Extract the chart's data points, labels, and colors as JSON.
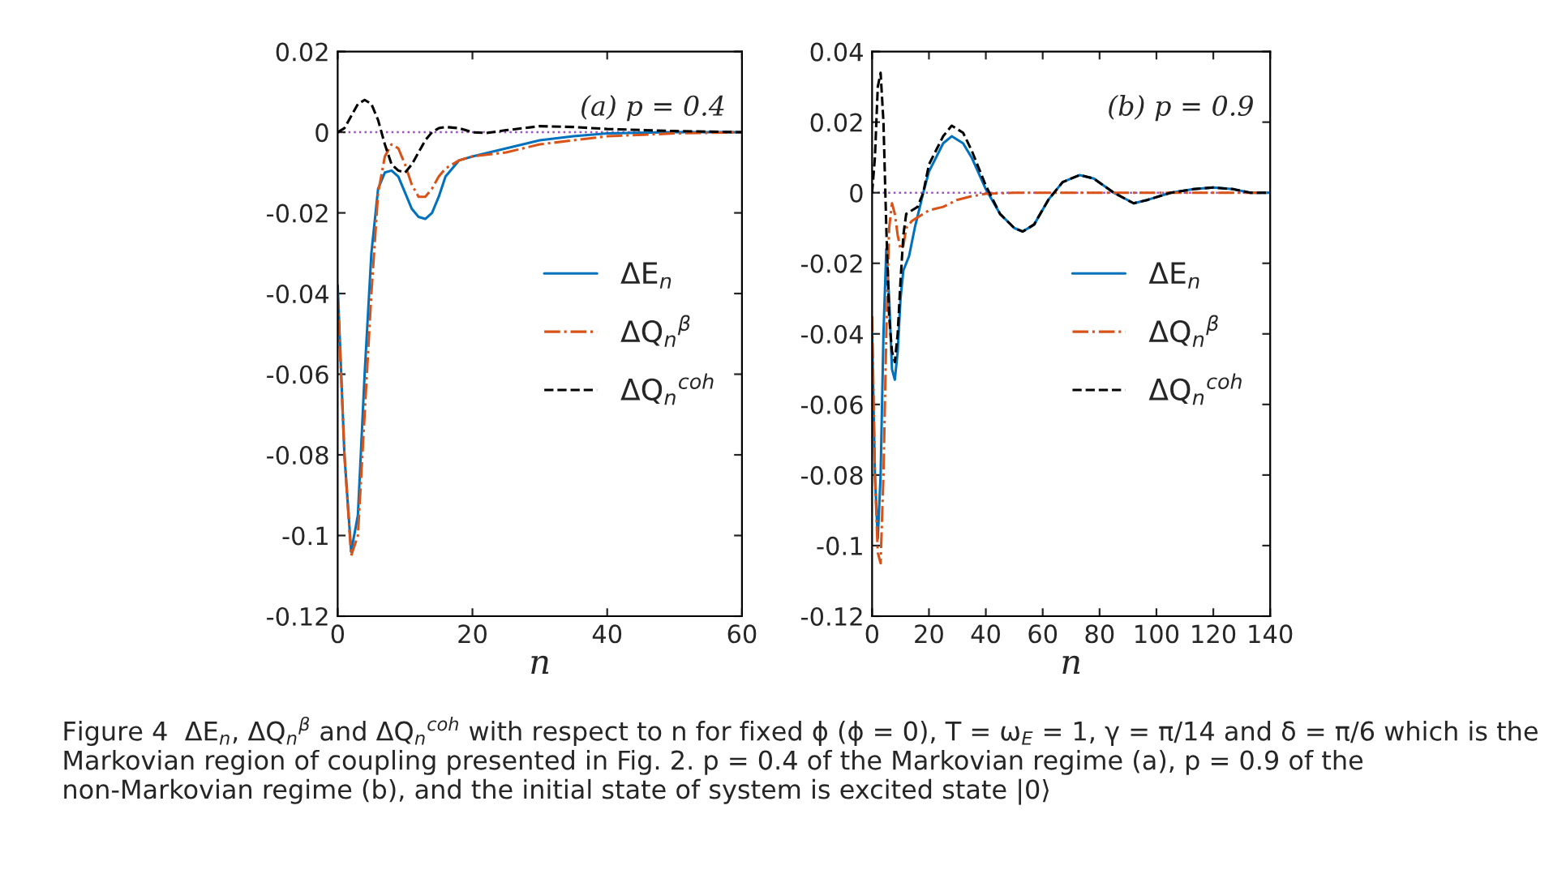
{
  "chart_data": [
    {
      "type": "line",
      "xlabel": "n",
      "xlim": [
        0,
        60
      ],
      "xticks": [
        0,
        20,
        40,
        60
      ],
      "ylim": [
        -0.12,
        0.02
      ],
      "yticks": [
        -0.12,
        -0.1,
        -0.08,
        -0.06,
        -0.04,
        -0.02,
        0,
        0.02
      ],
      "grid": false,
      "legend": "right",
      "marker": "none",
      "ref_lines": [
        {
          "axis": "y",
          "value": 0,
          "color": "#a050c0",
          "line_style": "dotted"
        }
      ],
      "annotations": [
        "(a) p = 0.4",
        "Figure 4  ΔE$_{n}$, ΔQ$_{n}$$^{β}$ and ΔQ$_{n}$$^{coh}$ with respect to n for fixed ϕ (ϕ = 0), T = ω$_{E}$ = 1, γ = π/14 and δ = π/6 which is the Markovian region of coupling presented in Fig. 2. p = 0.4 of the Markovian regime (a), p = 0.9 of the non-Markovian regime (b), and the initial state of system is excited state |0⟩"
      ],
      "series": [
        {
          "name": "ΔE$_{n}$",
          "color": "#0072bd",
          "line_style": "solid",
          "x": [
            0,
            1,
            2,
            3,
            4,
            5,
            6,
            7,
            8,
            9,
            10,
            11,
            12,
            13,
            14,
            15,
            16,
            18,
            20,
            25,
            30,
            35,
            40,
            50,
            60
          ],
          "values": [
            -0.038,
            -0.08,
            -0.104,
            -0.095,
            -0.06,
            -0.03,
            -0.014,
            -0.01,
            -0.0095,
            -0.011,
            -0.015,
            -0.019,
            -0.021,
            -0.0215,
            -0.02,
            -0.016,
            -0.011,
            -0.007,
            -0.006,
            -0.004,
            -0.002,
            -0.001,
            -0.0003,
            0,
            0
          ]
        },
        {
          "name": "ΔQ$_{n}$$^{β}$",
          "color": "#d95319",
          "line_style": "dashdot",
          "x": [
            0,
            1,
            2,
            3,
            4,
            5,
            6,
            7,
            8,
            9,
            10,
            11,
            12,
            13,
            14,
            15,
            16,
            18,
            20,
            25,
            30,
            40,
            50,
            60
          ],
          "values": [
            -0.04,
            -0.08,
            -0.105,
            -0.1,
            -0.07,
            -0.04,
            -0.015,
            -0.006,
            -0.003,
            -0.004,
            -0.008,
            -0.013,
            -0.016,
            -0.016,
            -0.014,
            -0.011,
            -0.009,
            -0.007,
            -0.006,
            -0.005,
            -0.003,
            -0.001,
            -0.0003,
            0
          ]
        },
        {
          "name": "ΔQ$_{n}$$^{coh}$",
          "color": "#000000",
          "line_style": "dashed",
          "x": [
            0,
            1,
            2,
            3,
            4,
            5,
            6,
            7,
            8,
            9,
            10,
            11,
            12,
            13,
            14,
            15,
            16,
            18,
            20,
            22,
            25,
            30,
            35,
            40,
            50,
            60
          ],
          "values": [
            0,
            0.001,
            0.004,
            0.007,
            0.008,
            0.007,
            0.003,
            -0.003,
            -0.008,
            -0.0095,
            -0.01,
            -0.008,
            -0.005,
            -0.002,
            0,
            0.001,
            0.0013,
            0.001,
            0,
            -0.0002,
            0.0005,
            0.0015,
            0.0013,
            0.0008,
            0.0003,
            0
          ]
        }
      ]
    },
    {
      "type": "line",
      "xlabel": "n",
      "xlim": [
        0,
        140
      ],
      "xticks": [
        0,
        20,
        40,
        60,
        80,
        100,
        120,
        140
      ],
      "ylim": [
        -0.12,
        0.04
      ],
      "yticks": [
        -0.12,
        -0.1,
        -0.08,
        -0.06,
        -0.04,
        -0.02,
        0,
        0.02,
        0.04
      ],
      "grid": false,
      "legend": "right",
      "marker": "none",
      "ref_lines": [
        {
          "axis": "y",
          "value": 0,
          "color": "#a050c0",
          "line_style": "dotted"
        }
      ],
      "annotations": [
        "(b) p = 0.9"
      ],
      "series": [
        {
          "name": "ΔE$_{n}$",
          "color": "#0072bd",
          "line_style": "solid",
          "x": [
            0,
            1,
            2,
            3,
            4,
            5,
            6,
            7,
            8,
            9,
            10,
            11,
            13,
            15,
            18,
            20,
            25,
            28,
            32,
            35,
            40,
            45,
            50,
            53,
            57,
            62,
            67,
            73,
            78,
            85,
            92,
            97,
            105,
            113,
            120,
            127,
            133,
            140
          ],
          "values": [
            -0.04,
            -0.08,
            -0.098,
            -0.08,
            -0.04,
            -0.016,
            -0.03,
            -0.05,
            -0.053,
            -0.045,
            -0.03,
            -0.022,
            -0.018,
            -0.01,
            0,
            0.006,
            0.014,
            0.016,
            0.014,
            0.01,
            0.001,
            -0.006,
            -0.01,
            -0.011,
            -0.009,
            -0.002,
            0.003,
            0.005,
            0.004,
            0,
            -0.003,
            -0.002,
            0,
            0.001,
            0.0015,
            0.001,
            0,
            0
          ]
        },
        {
          "name": "ΔQ$_{n}$$^{β}$",
          "color": "#d95319",
          "line_style": "dashdot",
          "x": [
            0,
            1,
            2,
            3,
            4,
            5,
            6,
            7,
            8,
            9,
            10,
            11,
            12,
            14,
            16,
            20,
            25,
            30,
            35,
            40,
            50,
            140
          ],
          "values": [
            -0.035,
            -0.08,
            -0.102,
            -0.105,
            -0.08,
            -0.04,
            -0.01,
            -0.003,
            -0.006,
            -0.012,
            -0.016,
            -0.015,
            -0.01,
            -0.008,
            -0.007,
            -0.005,
            -0.004,
            -0.002,
            -0.001,
            -0.0003,
            0,
            0
          ]
        },
        {
          "name": "ΔQ$_{n}$$^{coh}$",
          "color": "#000000",
          "line_style": "dashed",
          "x": [
            0,
            1,
            2,
            3,
            4,
            5,
            6,
            7,
            8,
            9,
            10,
            11,
            12,
            14,
            16,
            18,
            20,
            25,
            28,
            32,
            35,
            40,
            45,
            50,
            53,
            57,
            62,
            67,
            73,
            78,
            85,
            92,
            97,
            105,
            113,
            120,
            127,
            133,
            140
          ],
          "values": [
            0,
            0.01,
            0.03,
            0.034,
            0.02,
            -0.01,
            -0.035,
            -0.045,
            -0.048,
            -0.04,
            -0.025,
            -0.012,
            -0.006,
            -0.005,
            -0.004,
            0,
            0.008,
            0.016,
            0.019,
            0.017,
            0.012,
            0.002,
            -0.006,
            -0.01,
            -0.011,
            -0.009,
            -0.002,
            0.003,
            0.005,
            0.004,
            0,
            -0.003,
            -0.002,
            0,
            0.001,
            0.0015,
            0.001,
            0,
            0
          ]
        }
      ]
    }
  ]
}
